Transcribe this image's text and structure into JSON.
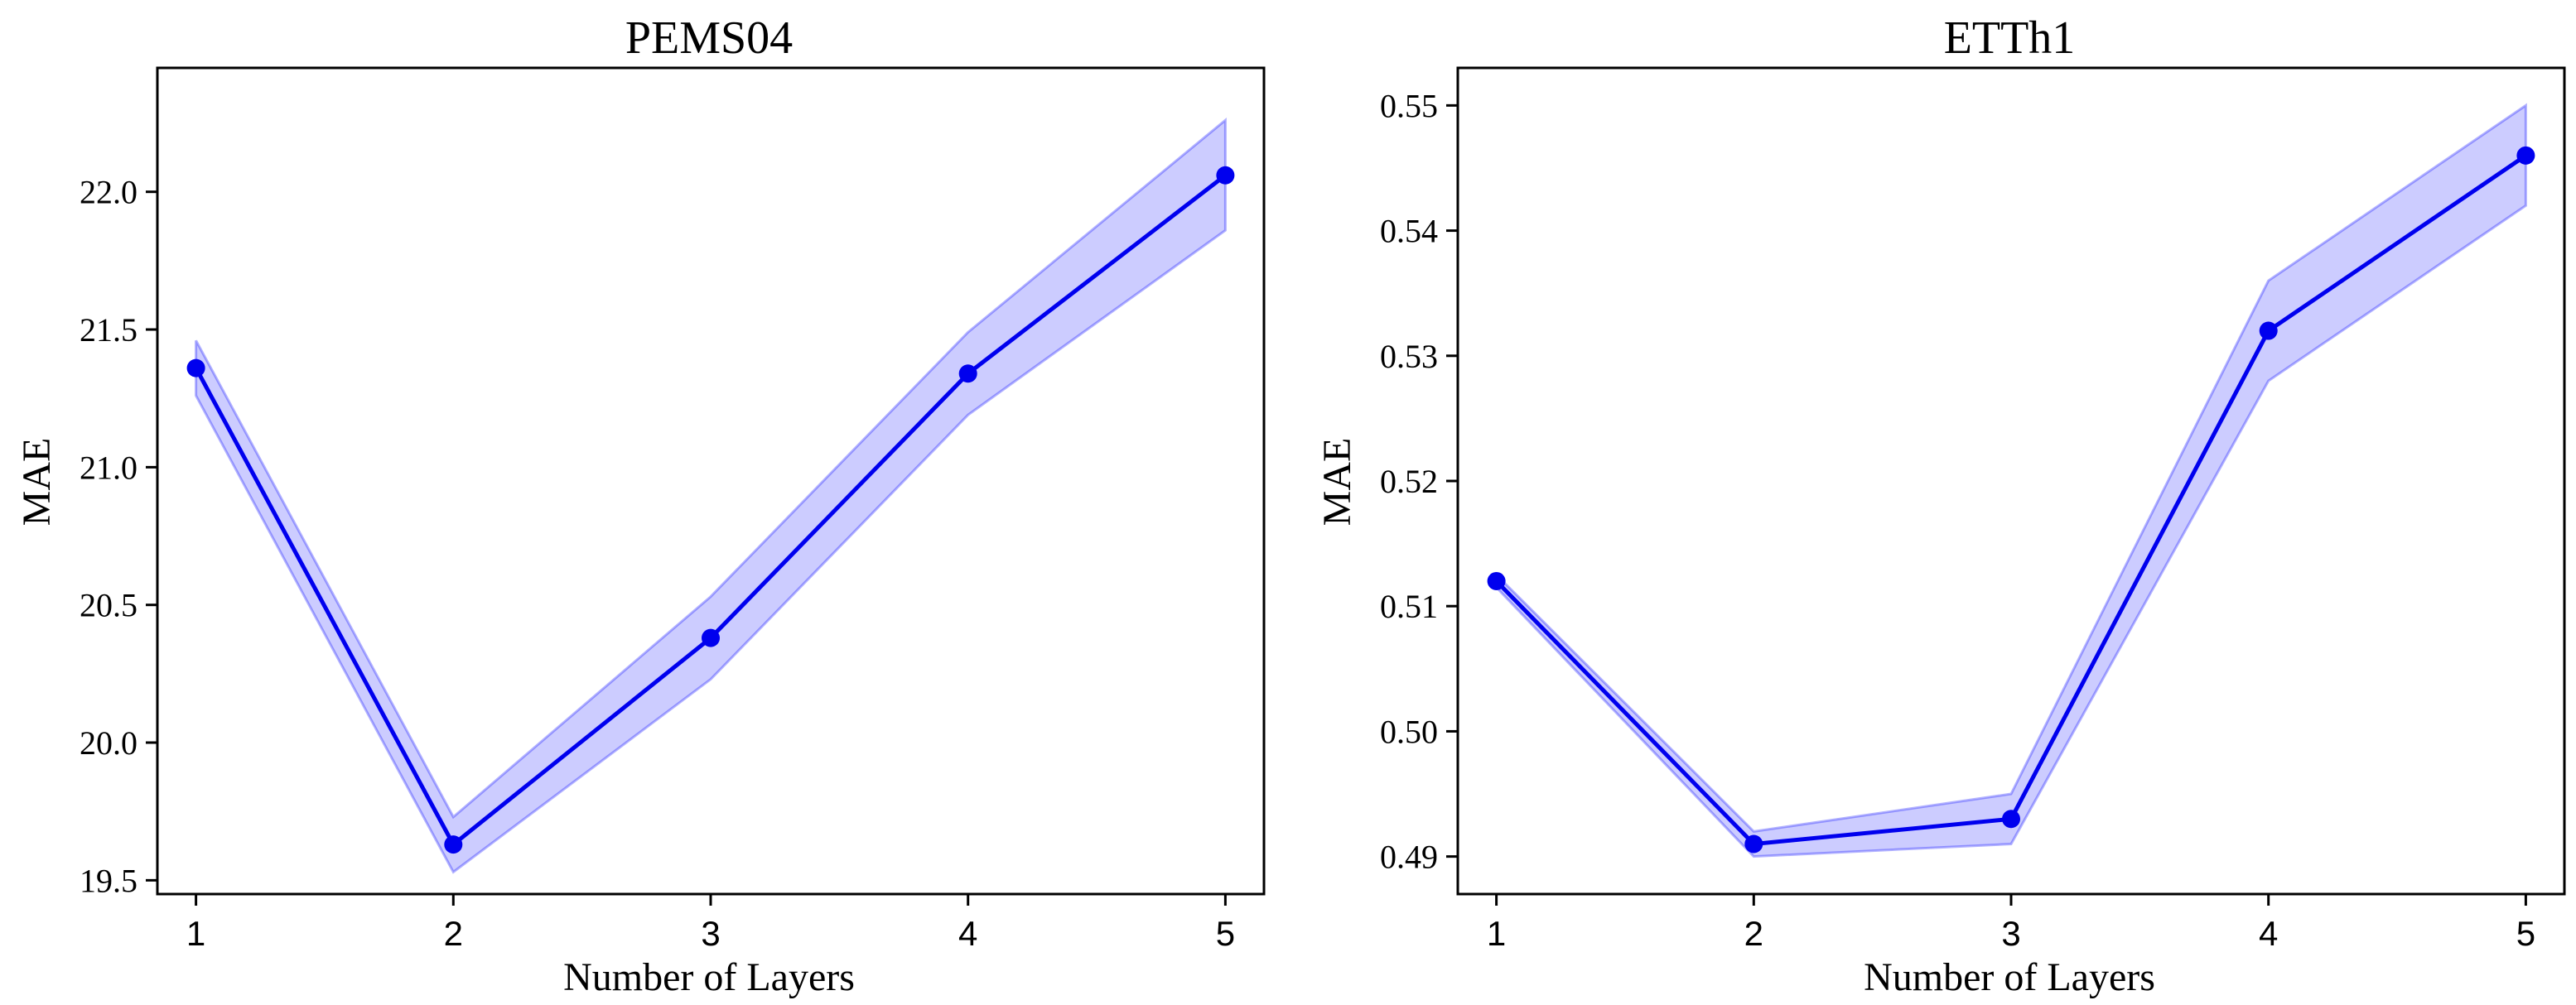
{
  "chart_data": [
    {
      "type": "line",
      "title": "PEMS04",
      "xlabel": "Number of Layers",
      "ylabel": "MAE",
      "x": [
        1,
        2,
        3,
        4,
        5
      ],
      "series": [
        {
          "values": [
            21.36,
            19.63,
            20.38,
            21.34,
            22.06
          ],
          "lower": [
            21.26,
            19.53,
            20.23,
            21.19,
            21.86
          ],
          "upper": [
            21.46,
            19.73,
            20.53,
            21.49,
            22.26
          ]
        }
      ],
      "xticks": [
        "1",
        "2",
        "3",
        "4",
        "5"
      ],
      "yticks": [
        "19.5",
        "20.0",
        "20.5",
        "21.0",
        "21.5",
        "22.0"
      ],
      "xlim": [
        0.85,
        5.15
      ],
      "ylim": [
        19.45,
        22.45
      ],
      "line_color": "#0000ee",
      "band_color": "#0000ff",
      "grid": false
    },
    {
      "type": "line",
      "title": "ETTh1",
      "xlabel": "Number of Layers",
      "ylabel": "MAE",
      "x": [
        1,
        2,
        3,
        4,
        5
      ],
      "series": [
        {
          "values": [
            0.512,
            0.491,
            0.493,
            0.532,
            0.546
          ],
          "lower": [
            0.5115,
            0.49,
            0.491,
            0.528,
            0.542
          ],
          "upper": [
            0.5125,
            0.492,
            0.495,
            0.536,
            0.55
          ]
        }
      ],
      "xticks": [
        "1",
        "2",
        "3",
        "4",
        "5"
      ],
      "yticks": [
        "0.49",
        "0.50",
        "0.51",
        "0.52",
        "0.53",
        "0.54",
        "0.55"
      ],
      "xlim": [
        0.85,
        5.15
      ],
      "ylim": [
        0.487,
        0.553
      ],
      "line_color": "#0000ee",
      "band_color": "#0000ff",
      "grid": false
    }
  ]
}
